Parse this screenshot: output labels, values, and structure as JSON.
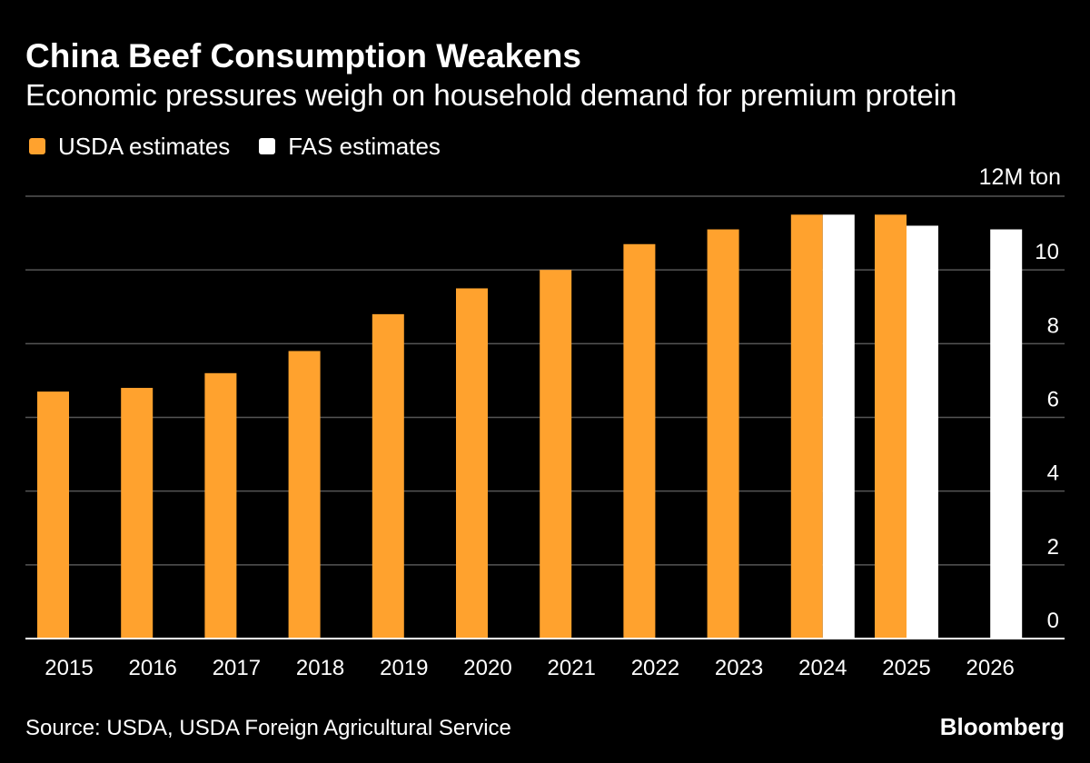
{
  "header": {
    "title": "China Beef Consumption Weakens",
    "subtitle": "Economic pressures weigh on household demand for premium protein"
  },
  "legend": [
    {
      "label": "USDA estimates",
      "color": "#ffa22e"
    },
    {
      "label": "FAS estimates",
      "color": "#ffffff"
    }
  ],
  "unit_label": "12M ton",
  "footer": {
    "source": "Source: USDA, USDA Foreign Agricultural Service",
    "brand": "Bloomberg"
  },
  "chart_data": {
    "type": "bar",
    "title": "China Beef Consumption Weakens",
    "xlabel": "",
    "ylabel": "M ton",
    "ylim": [
      0,
      12
    ],
    "yticks": [
      0,
      2,
      4,
      6,
      8,
      10,
      12
    ],
    "ytick_labels": [
      "0",
      "2",
      "4",
      "6",
      "8",
      "10",
      "12M ton"
    ],
    "grid": true,
    "legend_position": "top-left",
    "categories": [
      "2015",
      "2016",
      "2017",
      "2018",
      "2019",
      "2020",
      "2021",
      "2022",
      "2023",
      "2024",
      "2025",
      "2026"
    ],
    "series": [
      {
        "name": "USDA estimates",
        "color": "#ffa22e",
        "values": [
          6.7,
          6.8,
          7.2,
          7.8,
          8.8,
          9.5,
          10.0,
          10.7,
          11.1,
          11.5,
          11.5,
          null
        ]
      },
      {
        "name": "FAS estimates",
        "color": "#ffffff",
        "values": [
          null,
          null,
          null,
          null,
          null,
          null,
          null,
          null,
          null,
          11.5,
          11.2,
          11.1
        ]
      }
    ]
  }
}
